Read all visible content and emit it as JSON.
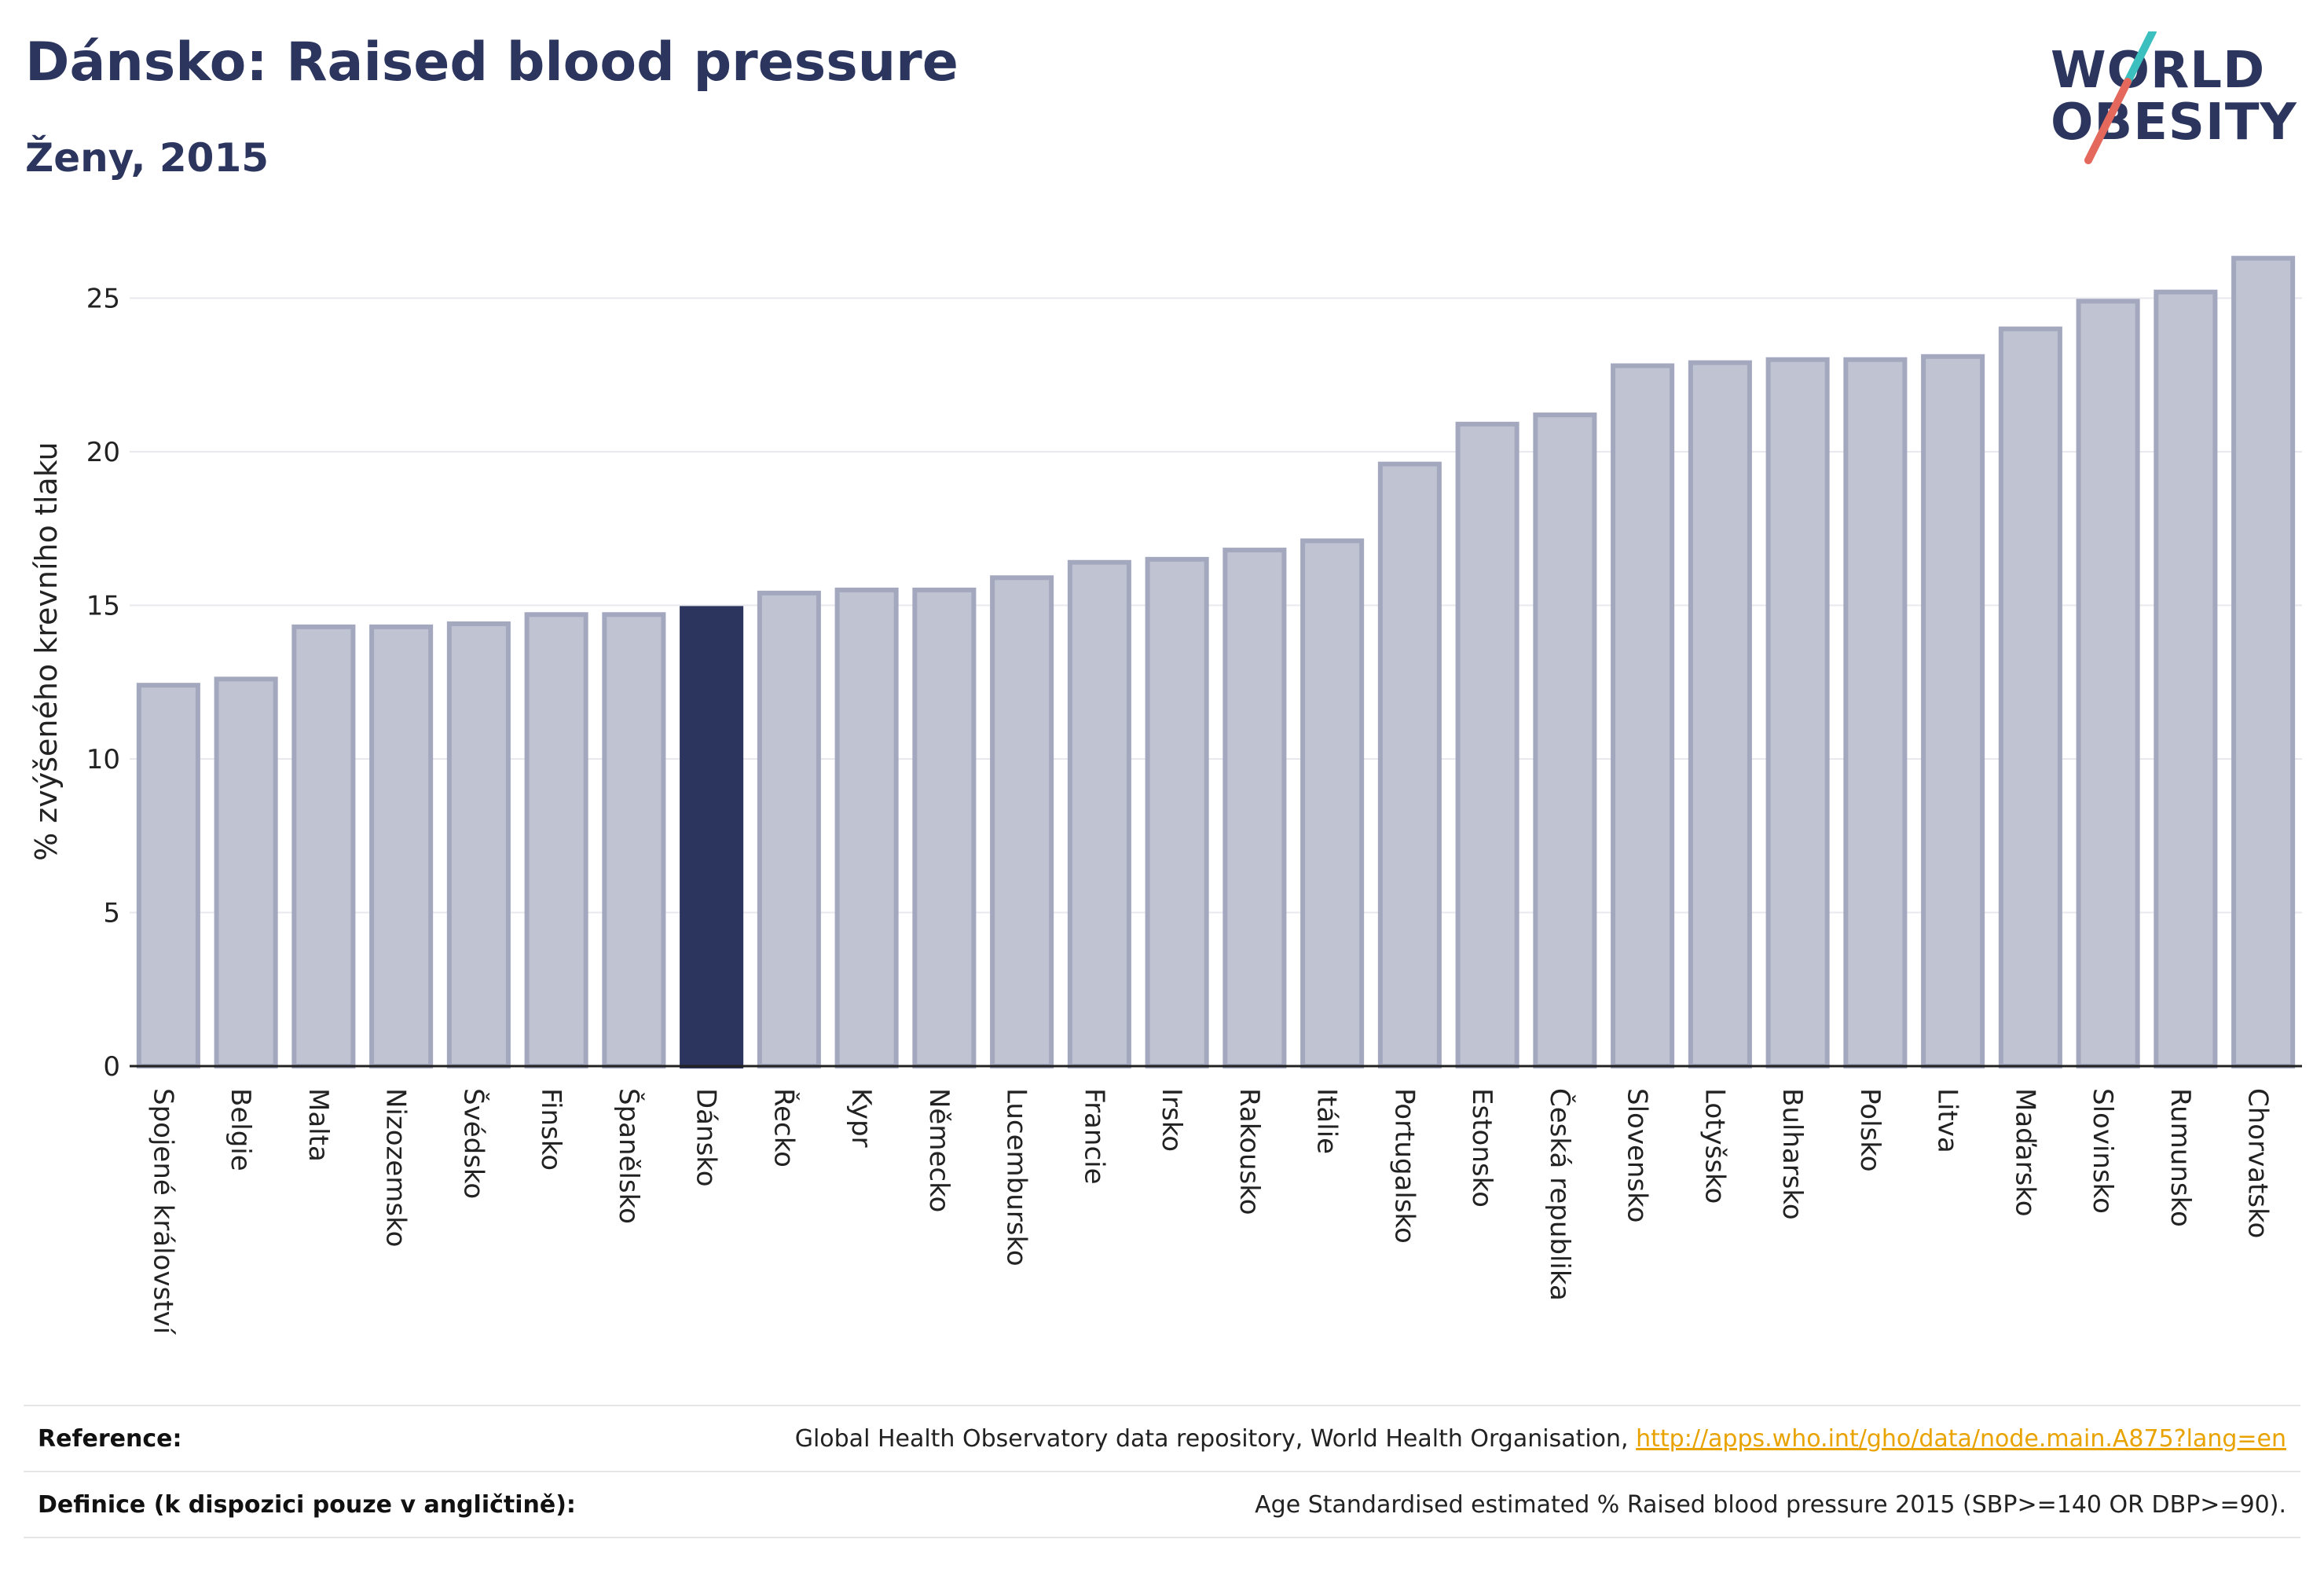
{
  "header": {
    "title": "Dánsko: Raised blood pressure",
    "subtitle": "Ženy, 2015"
  },
  "logo": {
    "line1": "WORLD",
    "line2": "OBESITY"
  },
  "colors": {
    "bar": "#c0c3d1",
    "bar_stroke": "#a3a8bf",
    "highlight": "#2b355e",
    "text": "#2b355e",
    "grid": "#e8e8ee",
    "link": "#e9a300"
  },
  "chart_data": {
    "type": "bar",
    "title": "Dánsko: Raised blood pressure",
    "subtitle": "Ženy, 2015",
    "ylabel": "% zvýšeného krevního tlaku",
    "xlabel": "",
    "ylim": [
      0,
      27
    ],
    "yticks": [
      0,
      5,
      10,
      15,
      20,
      25
    ],
    "grid": true,
    "highlight": "Dánsko",
    "categories": [
      "Spojené království",
      "Belgie",
      "Malta",
      "Nizozemsko",
      "Švédsko",
      "Finsko",
      "Španělsko",
      "Dánsko",
      "Řecko",
      "Kypr",
      "Německo",
      "Lucembursko",
      "Francie",
      "Irsko",
      "Rakousko",
      "Itálie",
      "Portugalsko",
      "Estonsko",
      "Česká republika",
      "Slovensko",
      "Lotyšsko",
      "Bulharsko",
      "Polsko",
      "Litva",
      "Maďarsko",
      "Slovinsko",
      "Rumunsko",
      "Chorvatsko"
    ],
    "values": [
      12.4,
      12.6,
      14.3,
      14.3,
      14.4,
      14.7,
      14.7,
      14.9,
      15.4,
      15.5,
      15.5,
      15.9,
      16.4,
      16.5,
      16.8,
      17.1,
      19.6,
      20.9,
      21.2,
      22.8,
      22.9,
      23.0,
      23.0,
      23.1,
      24.0,
      24.9,
      25.2,
      26.3
    ]
  },
  "footer": {
    "reference_label": "Reference:",
    "reference_text": "Global Health Observatory data repository, World Health Organisation,",
    "reference_link": "http://apps.who.int/gho/data/node.main.A875?lang=en",
    "definition_label": "Definice (k dispozici pouze v angličtině):",
    "definition_text": "Age Standardised estimated % Raised blood pressure 2015 (SBP>=140 OR DBP>=90)."
  }
}
